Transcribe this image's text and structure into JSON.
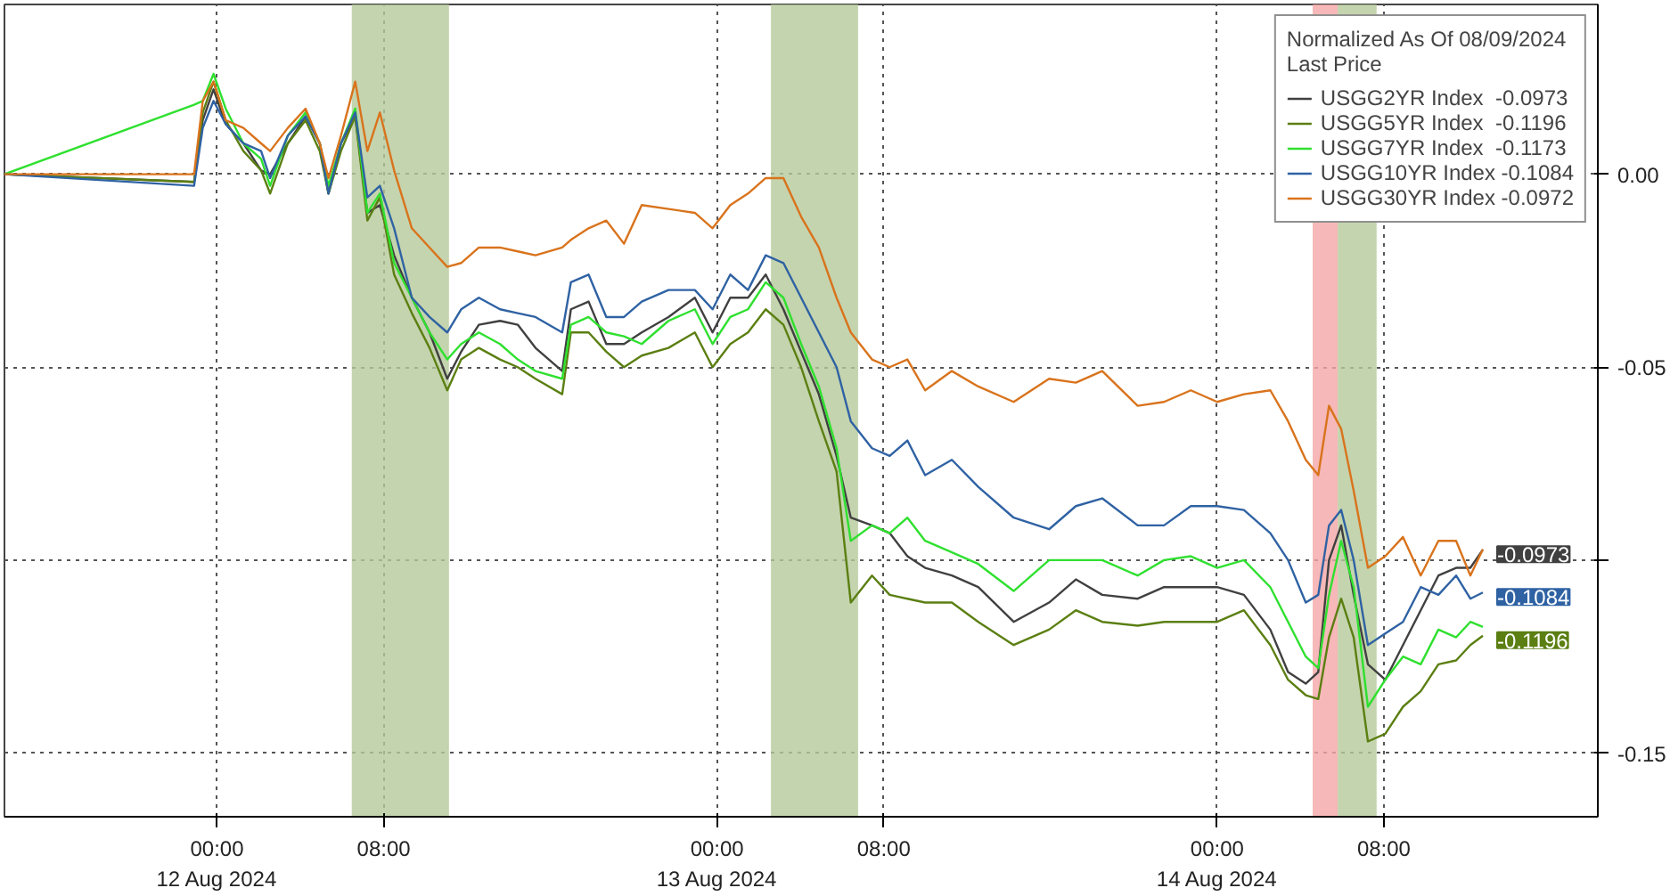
{
  "chart_data": {
    "type": "line",
    "x": [
      "2024-08-11T13:48",
      "2024-08-11T22:54",
      "2024-08-11T23:19",
      "2024-08-11T23:50",
      "2024-08-12T00:25",
      "2024-08-12T01:16",
      "2024-08-12T02:07",
      "2024-08-12T02:33",
      "2024-08-12T03:24",
      "2024-08-12T04:15",
      "2024-08-12T04:56",
      "2024-08-12T05:21",
      "2024-08-12T05:57",
      "2024-08-12T06:38",
      "2024-08-12T07:13",
      "2024-08-12T07:49",
      "2024-08-12T08:30",
      "2024-08-12T09:21",
      "2024-08-12T10:12",
      "2024-08-12T11:03",
      "2024-08-12T11:43",
      "2024-08-12T12:34",
      "2024-08-12T13:35",
      "2024-08-12T14:26",
      "2024-08-12T15:17",
      "2024-08-12T16:34",
      "2024-08-12T16:59",
      "2024-08-12T17:50",
      "2024-08-12T18:41",
      "2024-08-12T19:32",
      "2024-08-12T20:23",
      "2024-08-12T21:40",
      "2024-08-12T22:56",
      "2024-08-12T23:47",
      "2024-08-13T00:38",
      "2024-08-13T01:29",
      "2024-08-13T02:20",
      "2024-08-13T03:11",
      "2024-08-13T04:02",
      "2024-08-13T04:53",
      "2024-08-13T05:44",
      "2024-08-13T06:25",
      "2024-08-13T07:26",
      "2024-08-13T08:17",
      "2024-08-13T09:08",
      "2024-08-13T09:59",
      "2024-08-13T11:16",
      "2024-08-13T12:32",
      "2024-08-13T14:14",
      "2024-08-13T15:56",
      "2024-08-13T17:13",
      "2024-08-13T18:29",
      "2024-08-13T20:11",
      "2024-08-13T21:27",
      "2024-08-13T22:44",
      "2024-08-14T00:00",
      "2024-08-14T01:17",
      "2024-08-14T02:33",
      "2024-08-14T03:24",
      "2024-08-14T04:15",
      "2024-08-14T04:51",
      "2024-08-14T05:22",
      "2024-08-14T05:57",
      "2024-08-14T06:33",
      "2024-08-14T07:14",
      "2024-08-14T08:04",
      "2024-08-14T08:55",
      "2024-08-14T09:46",
      "2024-08-14T10:37",
      "2024-08-14T11:28",
      "2024-08-14T12:09",
      "2024-08-14T12:45"
    ],
    "series": [
      {
        "name": "USGG2YR Index  -0.0973",
        "color": "#404040",
        "values": [
          0.0,
          -0.002,
          0.014,
          0.022,
          0.013,
          0.008,
          0.001,
          0.0,
          0.008,
          0.015,
          0.008,
          -0.005,
          0.008,
          0.015,
          -0.01,
          -0.008,
          -0.021,
          -0.032,
          -0.041,
          -0.053,
          -0.046,
          -0.039,
          -0.038,
          -0.039,
          -0.045,
          -0.051,
          -0.035,
          -0.033,
          -0.044,
          -0.044,
          -0.041,
          -0.037,
          -0.032,
          -0.041,
          -0.032,
          -0.032,
          -0.026,
          -0.035,
          -0.046,
          -0.057,
          -0.073,
          -0.089,
          -0.091,
          -0.093,
          -0.099,
          -0.102,
          -0.104,
          -0.107,
          -0.116,
          -0.111,
          -0.105,
          -0.109,
          -0.11,
          -0.107,
          -0.107,
          -0.107,
          -0.109,
          -0.118,
          -0.129,
          -0.132,
          -0.129,
          -0.1,
          -0.091,
          -0.109,
          -0.127,
          -0.131,
          -0.122,
          -0.113,
          -0.104,
          -0.102,
          -0.102,
          -0.0973
        ]
      },
      {
        "name": "USGG5YR Index  -0.1196",
        "color": "#5b7f12",
        "values": [
          0.0,
          -0.002,
          0.016,
          0.024,
          0.014,
          0.006,
          0.001,
          -0.005,
          0.008,
          0.014,
          0.006,
          -0.005,
          0.006,
          0.015,
          -0.012,
          -0.006,
          -0.026,
          -0.036,
          -0.045,
          -0.056,
          -0.048,
          -0.045,
          -0.048,
          -0.05,
          -0.053,
          -0.057,
          -0.041,
          -0.041,
          -0.046,
          -0.05,
          -0.047,
          -0.045,
          -0.041,
          -0.05,
          -0.044,
          -0.041,
          -0.035,
          -0.039,
          -0.05,
          -0.064,
          -0.077,
          -0.111,
          -0.104,
          -0.109,
          -0.11,
          -0.111,
          -0.111,
          -0.116,
          -0.122,
          -0.118,
          -0.113,
          -0.116,
          -0.117,
          -0.116,
          -0.116,
          -0.116,
          -0.113,
          -0.122,
          -0.131,
          -0.135,
          -0.136,
          -0.12,
          -0.11,
          -0.12,
          -0.147,
          -0.145,
          -0.138,
          -0.134,
          -0.127,
          -0.126,
          -0.122,
          -0.1196
        ]
      },
      {
        "name": "USGG7YR Index  -0.1173",
        "color": "#2fe02f",
        "values": [
          0.0,
          0.018,
          0.019,
          0.026,
          0.017,
          0.008,
          0.004,
          -0.003,
          0.01,
          0.016,
          0.008,
          -0.003,
          0.008,
          0.017,
          -0.01,
          -0.005,
          -0.023,
          -0.032,
          -0.041,
          -0.048,
          -0.044,
          -0.041,
          -0.044,
          -0.048,
          -0.051,
          -0.053,
          -0.039,
          -0.037,
          -0.041,
          -0.042,
          -0.044,
          -0.038,
          -0.035,
          -0.044,
          -0.037,
          -0.035,
          -0.028,
          -0.032,
          -0.044,
          -0.055,
          -0.071,
          -0.095,
          -0.091,
          -0.093,
          -0.089,
          -0.095,
          -0.098,
          -0.101,
          -0.108,
          -0.1,
          -0.1,
          -0.1,
          -0.104,
          -0.1,
          -0.099,
          -0.102,
          -0.1,
          -0.107,
          -0.116,
          -0.125,
          -0.128,
          -0.109,
          -0.095,
          -0.107,
          -0.138,
          -0.131,
          -0.125,
          -0.127,
          -0.118,
          -0.12,
          -0.116,
          -0.1173
        ]
      },
      {
        "name": "USGG10YR Index -0.1084",
        "color": "#2f62a3",
        "values": [
          0.0,
          -0.003,
          0.012,
          0.019,
          0.013,
          0.008,
          0.006,
          -0.001,
          0.01,
          0.015,
          0.008,
          -0.005,
          0.008,
          0.016,
          -0.006,
          -0.003,
          -0.014,
          -0.032,
          -0.037,
          -0.041,
          -0.035,
          -0.032,
          -0.035,
          -0.036,
          -0.037,
          -0.041,
          -0.028,
          -0.026,
          -0.037,
          -0.037,
          -0.033,
          -0.03,
          -0.03,
          -0.035,
          -0.026,
          -0.03,
          -0.021,
          -0.023,
          -0.032,
          -0.041,
          -0.05,
          -0.064,
          -0.071,
          -0.073,
          -0.069,
          -0.078,
          -0.074,
          -0.081,
          -0.089,
          -0.092,
          -0.086,
          -0.084,
          -0.091,
          -0.091,
          -0.086,
          -0.086,
          -0.087,
          -0.093,
          -0.1,
          -0.111,
          -0.109,
          -0.091,
          -0.087,
          -0.1,
          -0.122,
          -0.119,
          -0.116,
          -0.107,
          -0.109,
          -0.104,
          -0.11,
          -0.1084
        ]
      },
      {
        "name": "USGG30YR Index -0.0972",
        "color": "#d9731c",
        "values": [
          0.0,
          0.0,
          0.019,
          0.024,
          0.014,
          0.012,
          0.008,
          0.006,
          0.012,
          0.017,
          0.008,
          -0.001,
          0.01,
          0.024,
          0.006,
          0.016,
          0.001,
          -0.014,
          -0.019,
          -0.024,
          -0.023,
          -0.019,
          -0.019,
          -0.02,
          -0.021,
          -0.019,
          -0.017,
          -0.014,
          -0.012,
          -0.018,
          -0.008,
          -0.009,
          -0.01,
          -0.014,
          -0.008,
          -0.005,
          -0.001,
          -0.001,
          -0.011,
          -0.019,
          -0.032,
          -0.041,
          -0.048,
          -0.05,
          -0.048,
          -0.056,
          -0.051,
          -0.055,
          -0.059,
          -0.053,
          -0.054,
          -0.051,
          -0.06,
          -0.059,
          -0.056,
          -0.059,
          -0.057,
          -0.056,
          -0.064,
          -0.074,
          -0.078,
          -0.06,
          -0.066,
          -0.082,
          -0.102,
          -0.099,
          -0.094,
          -0.104,
          -0.095,
          -0.095,
          -0.104,
          -0.0972
        ]
      }
    ],
    "legend_title": "Normalized As Of 08/09/2024\nLast Price",
    "legend": "top right",
    "xlim": [
      "2024-08-11T13:48",
      "2024-08-14T18:16"
    ],
    "xticks": [
      {
        "value": "2024-08-12T00:00",
        "label": "00:00\n12 Aug 2024"
      },
      {
        "value": "2024-08-12T08:00",
        "label": "08:00"
      },
      {
        "value": "2024-08-13T00:00",
        "label": "00:00\n13 Aug 2024"
      },
      {
        "value": "2024-08-13T08:00",
        "label": "08:00"
      },
      {
        "value": "2024-08-14T00:00",
        "label": "00:00\n14 Aug 2024"
      },
      {
        "value": "2024-08-14T08:00",
        "label": "08:00"
      }
    ],
    "ylim": [
      -0.1665,
      0.044
    ],
    "yticks": [
      {
        "value": 0,
        "label": "0.00"
      },
      {
        "value": -0.05,
        "label": "-0.05"
      },
      {
        "value": -0.1,
        "label": null
      },
      {
        "value": -0.15,
        "label": "-0.15"
      }
    ],
    "grid": true,
    "line_style": "solid",
    "bands": [
      {
        "axis": "x",
        "from": "2024-08-12T06:28",
        "to": "2024-08-12T11:08",
        "color": "#b5c99a"
      },
      {
        "axis": "x",
        "from": "2024-08-13T02:35",
        "to": "2024-08-13T06:46",
        "color": "#b5c99a"
      },
      {
        "axis": "x",
        "from": "2024-08-14T04:35",
        "to": "2024-08-14T05:47",
        "color": "#f4a6a6"
      },
      {
        "axis": "x",
        "from": "2024-08-14T05:47",
        "to": "2024-08-14T07:39",
        "color": "#b5c99a"
      }
    ],
    "annotations": [
      {
        "text": "-0.0973",
        "x": "2024-08-14T12:45",
        "y": -0.0973
      },
      {
        "text": "-0.1084",
        "x": "2024-08-14T12:45",
        "y": -0.1084
      },
      {
        "text": "-0.1196",
        "x": "2024-08-14T12:45",
        "y": -0.1196
      }
    ]
  }
}
